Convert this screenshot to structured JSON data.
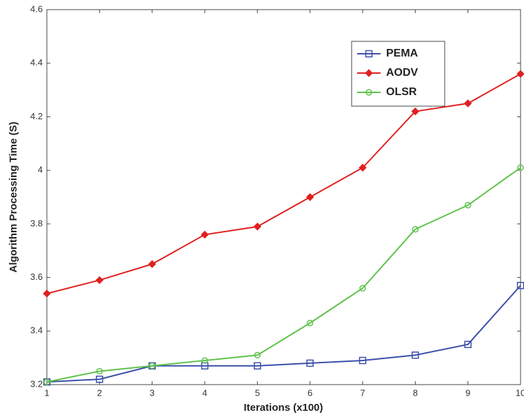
{
  "chart_data": {
    "type": "line",
    "xlabel": "Iterations (x100)",
    "ylabel": "Algorithm Processing Time (S)",
    "x": [
      1,
      2,
      3,
      4,
      5,
      6,
      7,
      8,
      9,
      10
    ],
    "series": [
      {
        "name": "PEMA",
        "color": "#3a4fa8",
        "marker": "square",
        "values": [
          3.21,
          3.22,
          3.27,
          3.27,
          3.27,
          3.28,
          3.29,
          3.31,
          3.35,
          3.57
        ]
      },
      {
        "name": "AODV",
        "color": "#e02020",
        "marker": "diamond",
        "values": [
          3.54,
          3.59,
          3.65,
          3.76,
          3.79,
          3.9,
          4.01,
          4.22,
          4.25,
          4.36
        ]
      },
      {
        "name": "OLSR",
        "color": "#5fc24a",
        "marker": "circle",
        "values": [
          3.21,
          3.25,
          3.27,
          3.29,
          3.31,
          3.43,
          3.56,
          3.78,
          3.87,
          4.01
        ]
      }
    ],
    "xlim": [
      1,
      10
    ],
    "xticks": [
      1,
      2,
      3,
      4,
      5,
      6,
      7,
      8,
      9,
      10
    ],
    "ylim": [
      3.2,
      4.6
    ],
    "yticks": [
      3.2,
      3.4,
      3.6,
      3.8,
      4,
      4.2,
      4.4,
      4.6
    ],
    "legend": "upper right",
    "grid": false
  }
}
